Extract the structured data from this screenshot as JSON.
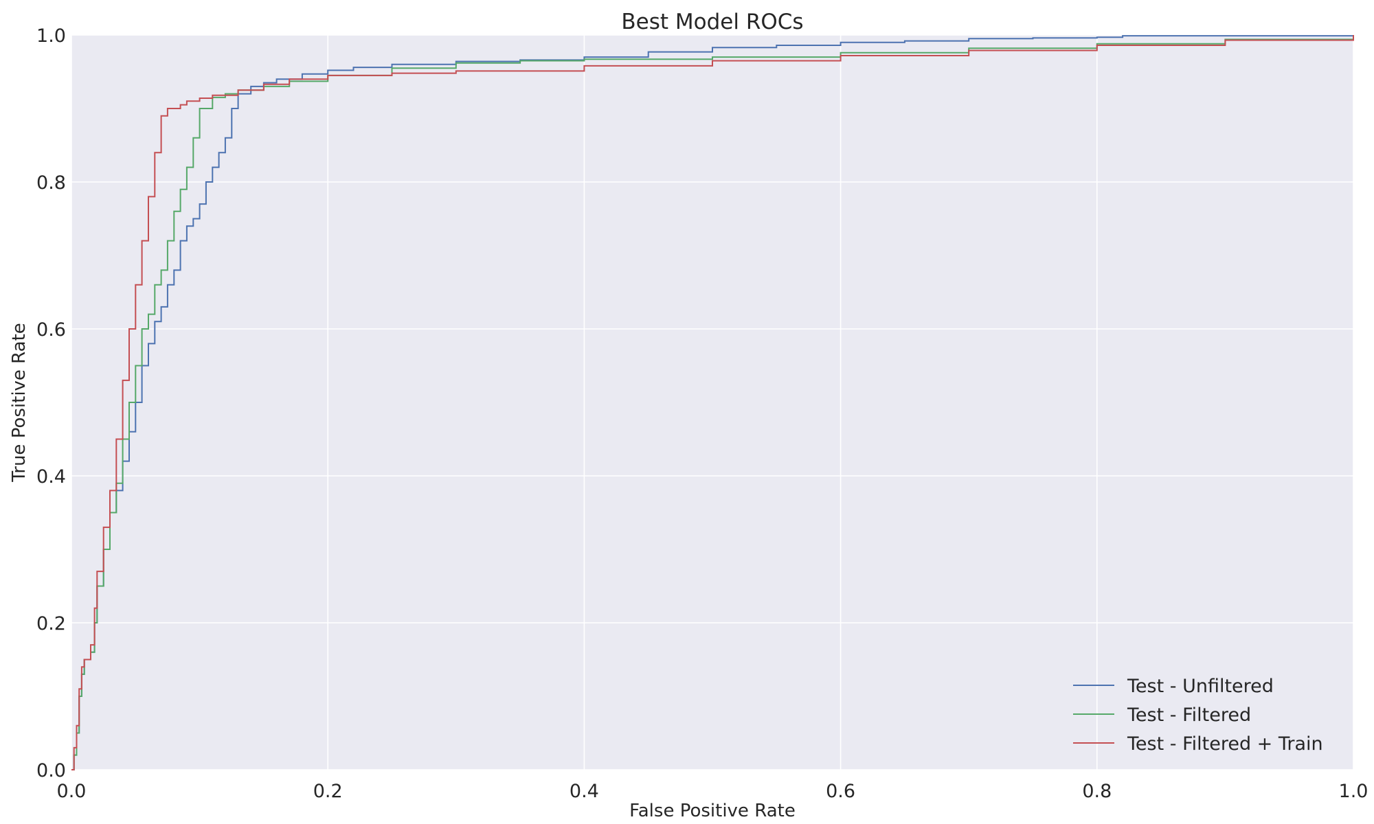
{
  "chart_data": {
    "type": "line",
    "title": "Best Model ROCs",
    "xlabel": "False Positive Rate",
    "ylabel": "True Positive Rate",
    "xlim": [
      0,
      1
    ],
    "ylim": [
      0,
      1
    ],
    "x_ticks": [
      "0.0",
      "0.2",
      "0.4",
      "0.6",
      "0.8",
      "1.0"
    ],
    "y_ticks": [
      "0.0",
      "0.2",
      "0.4",
      "0.6",
      "0.8",
      "1.0"
    ],
    "grid": true,
    "background_color": "#EAEAF2",
    "grid_color": "#FFFFFF",
    "legend_position": "lower-right",
    "series": [
      {
        "name": "Test - Unfiltered",
        "color": "#4C72B0",
        "points": [
          [
            0.0,
            0.0
          ],
          [
            0.002,
            0.02
          ],
          [
            0.004,
            0.05
          ],
          [
            0.006,
            0.1
          ],
          [
            0.008,
            0.13
          ],
          [
            0.01,
            0.15
          ],
          [
            0.015,
            0.16
          ],
          [
            0.018,
            0.2
          ],
          [
            0.02,
            0.25
          ],
          [
            0.025,
            0.3
          ],
          [
            0.03,
            0.35
          ],
          [
            0.035,
            0.38
          ],
          [
            0.04,
            0.42
          ],
          [
            0.045,
            0.46
          ],
          [
            0.05,
            0.5
          ],
          [
            0.055,
            0.55
          ],
          [
            0.06,
            0.58
          ],
          [
            0.065,
            0.61
          ],
          [
            0.07,
            0.63
          ],
          [
            0.075,
            0.66
          ],
          [
            0.08,
            0.68
          ],
          [
            0.085,
            0.72
          ],
          [
            0.09,
            0.74
          ],
          [
            0.095,
            0.75
          ],
          [
            0.1,
            0.77
          ],
          [
            0.105,
            0.8
          ],
          [
            0.11,
            0.82
          ],
          [
            0.115,
            0.84
          ],
          [
            0.12,
            0.86
          ],
          [
            0.125,
            0.9
          ],
          [
            0.13,
            0.92
          ],
          [
            0.14,
            0.93
          ],
          [
            0.15,
            0.935
          ],
          [
            0.16,
            0.94
          ],
          [
            0.18,
            0.947
          ],
          [
            0.2,
            0.952
          ],
          [
            0.22,
            0.956
          ],
          [
            0.25,
            0.96
          ],
          [
            0.3,
            0.964
          ],
          [
            0.35,
            0.966
          ],
          [
            0.4,
            0.97
          ],
          [
            0.45,
            0.977
          ],
          [
            0.5,
            0.983
          ],
          [
            0.55,
            0.986
          ],
          [
            0.6,
            0.99
          ],
          [
            0.65,
            0.992
          ],
          [
            0.7,
            0.995
          ],
          [
            0.75,
            0.996
          ],
          [
            0.8,
            0.997
          ],
          [
            0.82,
            0.999
          ],
          [
            0.9,
            0.999
          ],
          [
            1.0,
            1.0
          ]
        ]
      },
      {
        "name": "Test - Filtered",
        "color": "#55A868",
        "points": [
          [
            0.0,
            0.0
          ],
          [
            0.002,
            0.02
          ],
          [
            0.004,
            0.05
          ],
          [
            0.006,
            0.1
          ],
          [
            0.008,
            0.13
          ],
          [
            0.01,
            0.15
          ],
          [
            0.015,
            0.16
          ],
          [
            0.018,
            0.2
          ],
          [
            0.02,
            0.25
          ],
          [
            0.025,
            0.3
          ],
          [
            0.03,
            0.35
          ],
          [
            0.035,
            0.39
          ],
          [
            0.04,
            0.45
          ],
          [
            0.045,
            0.5
          ],
          [
            0.05,
            0.55
          ],
          [
            0.055,
            0.6
          ],
          [
            0.06,
            0.62
          ],
          [
            0.065,
            0.66
          ],
          [
            0.07,
            0.68
          ],
          [
            0.075,
            0.72
          ],
          [
            0.08,
            0.76
          ],
          [
            0.085,
            0.79
          ],
          [
            0.09,
            0.82
          ],
          [
            0.095,
            0.86
          ],
          [
            0.1,
            0.9
          ],
          [
            0.11,
            0.915
          ],
          [
            0.12,
            0.92
          ],
          [
            0.13,
            0.925
          ],
          [
            0.15,
            0.93
          ],
          [
            0.17,
            0.937
          ],
          [
            0.2,
            0.945
          ],
          [
            0.25,
            0.955
          ],
          [
            0.3,
            0.962
          ],
          [
            0.35,
            0.965
          ],
          [
            0.4,
            0.967
          ],
          [
            0.5,
            0.97
          ],
          [
            0.6,
            0.976
          ],
          [
            0.7,
            0.982
          ],
          [
            0.8,
            0.988
          ],
          [
            0.9,
            0.994
          ],
          [
            1.0,
            1.0
          ]
        ]
      },
      {
        "name": "Test - Filtered + Train",
        "color": "#C44E52",
        "points": [
          [
            0.0,
            0.0
          ],
          [
            0.002,
            0.03
          ],
          [
            0.004,
            0.06
          ],
          [
            0.006,
            0.11
          ],
          [
            0.008,
            0.14
          ],
          [
            0.01,
            0.15
          ],
          [
            0.015,
            0.17
          ],
          [
            0.018,
            0.22
          ],
          [
            0.02,
            0.27
          ],
          [
            0.025,
            0.33
          ],
          [
            0.03,
            0.38
          ],
          [
            0.035,
            0.45
          ],
          [
            0.04,
            0.53
          ],
          [
            0.045,
            0.6
          ],
          [
            0.05,
            0.66
          ],
          [
            0.055,
            0.72
          ],
          [
            0.06,
            0.78
          ],
          [
            0.065,
            0.84
          ],
          [
            0.07,
            0.89
          ],
          [
            0.075,
            0.9
          ],
          [
            0.085,
            0.905
          ],
          [
            0.09,
            0.91
          ],
          [
            0.1,
            0.914
          ],
          [
            0.11,
            0.918
          ],
          [
            0.13,
            0.925
          ],
          [
            0.15,
            0.933
          ],
          [
            0.17,
            0.94
          ],
          [
            0.2,
            0.945
          ],
          [
            0.25,
            0.948
          ],
          [
            0.3,
            0.951
          ],
          [
            0.4,
            0.958
          ],
          [
            0.5,
            0.965
          ],
          [
            0.6,
            0.972
          ],
          [
            0.7,
            0.979
          ],
          [
            0.8,
            0.986
          ],
          [
            0.9,
            0.993
          ],
          [
            1.0,
            1.0
          ]
        ]
      }
    ]
  }
}
